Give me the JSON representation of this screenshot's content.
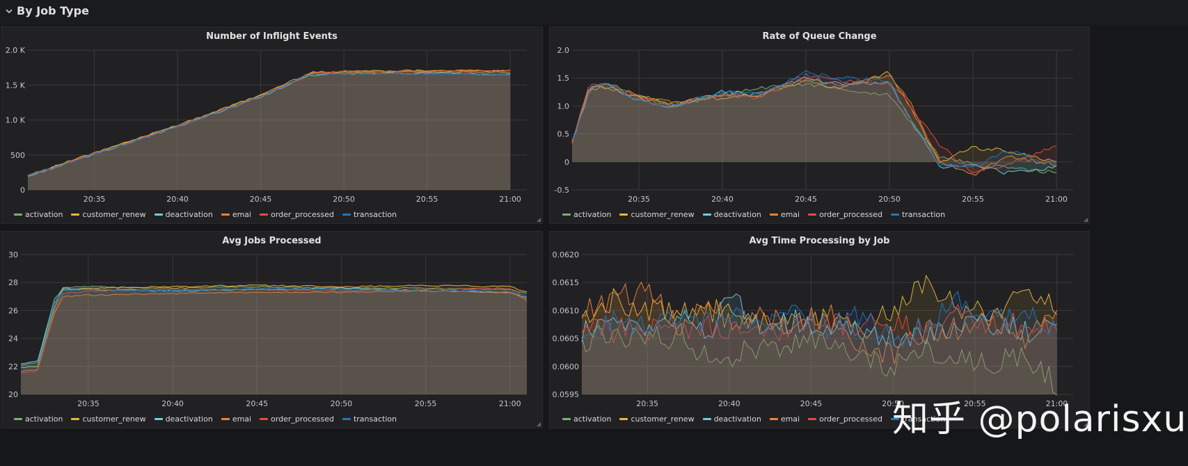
{
  "row": {
    "title": "By Job Type"
  },
  "series_colors": {
    "activation": "#7eb26d",
    "customer_renew": "#eab839",
    "deactivation": "#6ed0e0",
    "emai": "#ef843c",
    "order_processed": "#e24d42",
    "transaction": "#1f78c1"
  },
  "legend_labels": [
    "activation",
    "customer_renew",
    "deactivation",
    "emai",
    "order_processed",
    "transaction"
  ],
  "watermark": "知乎 @polarisxu",
  "chart_data": [
    {
      "type": "line",
      "title": "Number of Inflight Events",
      "x": [
        "20:31",
        "20:35",
        "20:40",
        "20:45",
        "20:48",
        "20:50",
        "20:55",
        "21:00"
      ],
      "x_ticks": [
        "20:35",
        "20:40",
        "20:45",
        "20:50",
        "20:55",
        "21:00"
      ],
      "y_ticks": [
        "0",
        "500",
        "1.0 K",
        "1.5 K",
        "2.0 K"
      ],
      "ylim": [
        0,
        2000
      ],
      "x_range": [
        "20:31",
        "21:01"
      ],
      "series": [
        {
          "name": "activation",
          "values": [
            200,
            520,
            930,
            1350,
            1650,
            1680,
            1690,
            1680
          ]
        },
        {
          "name": "customer_renew",
          "values": [
            210,
            530,
            920,
            1360,
            1680,
            1700,
            1710,
            1700
          ]
        },
        {
          "name": "deactivation",
          "values": [
            190,
            510,
            900,
            1330,
            1640,
            1660,
            1670,
            1650
          ]
        },
        {
          "name": "emai",
          "values": [
            205,
            525,
            915,
            1345,
            1670,
            1690,
            1700,
            1710
          ]
        },
        {
          "name": "order_processed",
          "values": [
            200,
            520,
            910,
            1340,
            1660,
            1700,
            1690,
            1700
          ]
        },
        {
          "name": "transaction",
          "values": [
            195,
            515,
            905,
            1335,
            1660,
            1670,
            1660,
            1640
          ]
        }
      ]
    },
    {
      "type": "line",
      "title": "Rate of Queue Change",
      "x": [
        "20:31",
        "20:32",
        "20:33",
        "20:35",
        "20:37",
        "20:40",
        "20:42",
        "20:45",
        "20:47",
        "20:50",
        "20:51",
        "20:53",
        "20:55",
        "20:57",
        "21:00"
      ],
      "x_ticks": [
        "20:35",
        "20:40",
        "20:45",
        "20:50",
        "20:55",
        "21:00"
      ],
      "y_ticks": [
        "-0.5",
        "0",
        "0.5",
        "1.0",
        "1.5",
        "2.0"
      ],
      "ylim": [
        -0.5,
        2.0
      ],
      "x_range": [
        "20:31",
        "21:01"
      ],
      "series": [
        {
          "name": "activation",
          "values": [
            0.35,
            1.3,
            1.4,
            1.2,
            1.0,
            1.2,
            1.3,
            1.4,
            1.3,
            1.2,
            0.8,
            0.1,
            -0.05,
            -0.1,
            -0.2
          ]
        },
        {
          "name": "customer_renew",
          "values": [
            0.35,
            1.25,
            1.35,
            1.15,
            1.05,
            1.15,
            1.2,
            1.45,
            1.3,
            1.6,
            1.1,
            0.0,
            0.25,
            0.2,
            0.0
          ]
        },
        {
          "name": "deactivation",
          "values": [
            0.35,
            1.3,
            1.4,
            1.1,
            1.0,
            1.25,
            1.2,
            1.5,
            1.4,
            1.4,
            0.9,
            -0.1,
            -0.05,
            -0.2,
            -0.1
          ]
        },
        {
          "name": "emai",
          "values": [
            0.35,
            1.3,
            1.35,
            1.2,
            1.05,
            1.2,
            1.15,
            1.5,
            1.35,
            1.55,
            1.2,
            0.0,
            -0.25,
            0.1,
            -0.05
          ]
        },
        {
          "name": "order_processed",
          "values": [
            0.35,
            1.35,
            1.4,
            1.15,
            1.0,
            1.2,
            1.15,
            1.55,
            1.45,
            1.4,
            1.1,
            0.3,
            -0.2,
            -0.05,
            0.3
          ]
        },
        {
          "name": "transaction",
          "values": [
            0.35,
            1.3,
            1.4,
            1.1,
            1.0,
            1.25,
            1.2,
            1.6,
            1.5,
            1.45,
            0.9,
            -0.05,
            -0.1,
            0.2,
            -0.05
          ]
        }
      ]
    },
    {
      "type": "line",
      "title": "Avg Jobs Processed",
      "x": [
        "20:31",
        "20:32",
        "20:33",
        "20:33.5",
        "20:35",
        "20:40",
        "20:45",
        "20:50",
        "20:55",
        "21:00",
        "21:01"
      ],
      "x_ticks": [
        "20:35",
        "20:40",
        "20:45",
        "20:50",
        "20:55",
        "21:00"
      ],
      "y_ticks": [
        "20",
        "22",
        "24",
        "26",
        "28",
        "30"
      ],
      "ylim": [
        20,
        30
      ],
      "x_range": [
        "20:31",
        "21:01"
      ],
      "series": [
        {
          "name": "activation",
          "values": [
            22.1,
            22.3,
            26.5,
            27.6,
            27.7,
            27.6,
            27.7,
            27.6,
            27.6,
            27.5,
            27.2
          ]
        },
        {
          "name": "customer_renew",
          "values": [
            21.9,
            22.0,
            26.2,
            27.5,
            27.6,
            27.7,
            27.8,
            27.7,
            27.8,
            27.7,
            27.3
          ]
        },
        {
          "name": "deactivation",
          "values": [
            22.2,
            22.4,
            26.8,
            27.6,
            27.5,
            27.4,
            27.5,
            27.6,
            27.4,
            27.3,
            26.9
          ]
        },
        {
          "name": "emai",
          "values": [
            21.6,
            21.8,
            25.8,
            27.0,
            27.1,
            27.2,
            27.3,
            27.3,
            27.4,
            27.3,
            26.8
          ]
        },
        {
          "name": "order_processed",
          "values": [
            21.5,
            21.7,
            25.9,
            27.2,
            27.4,
            27.5,
            27.5,
            27.4,
            27.5,
            27.6,
            26.7
          ]
        },
        {
          "name": "transaction",
          "values": [
            22.0,
            22.1,
            26.4,
            27.4,
            27.5,
            27.4,
            27.6,
            27.5,
            27.4,
            27.4,
            27.0
          ]
        }
      ]
    },
    {
      "type": "line",
      "title": "Avg Time Processing by Job",
      "x": [
        "20:31",
        "20:33",
        "20:35",
        "20:37",
        "20:39",
        "20:40",
        "20:42",
        "20:44",
        "20:46",
        "20:48",
        "20:50",
        "20:52",
        "20:54",
        "20:56",
        "20:58",
        "21:00"
      ],
      "x_ticks": [
        "20:35",
        "20:40",
        "20:45",
        "20:50",
        "20:55",
        "21:00"
      ],
      "y_ticks": [
        "0.0595",
        "0.0600",
        "0.0605",
        "0.0610",
        "0.0615",
        "0.0620"
      ],
      "ylim": [
        0.0595,
        0.062
      ],
      "x_range": [
        "20:31",
        "21:01"
      ],
      "series": [
        {
          "name": "activation",
          "values": [
            0.06045,
            0.0606,
            0.0605,
            0.06055,
            0.0601,
            0.0602,
            0.0603,
            0.06045,
            0.0604,
            0.0602,
            0.06,
            0.0603,
            0.0601,
            0.06005,
            0.0602,
            0.0597
          ]
        },
        {
          "name": "customer_renew",
          "values": [
            0.0609,
            0.0612,
            0.061,
            0.0609,
            0.061,
            0.0609,
            0.0608,
            0.06085,
            0.0608,
            0.0606,
            0.061,
            0.0615,
            0.0611,
            0.0609,
            0.0613,
            0.0611
          ]
        },
        {
          "name": "deactivation",
          "values": [
            0.0606,
            0.0608,
            0.0607,
            0.06085,
            0.0606,
            0.0613,
            0.0607,
            0.0608,
            0.0607,
            0.06065,
            0.0605,
            0.0606,
            0.0607,
            0.0608,
            0.0606,
            0.0607
          ]
        },
        {
          "name": "emai",
          "values": [
            0.061,
            0.0612,
            0.0614,
            0.0607,
            0.0611,
            0.0608,
            0.0609,
            0.0607,
            0.061,
            0.0603,
            0.0602,
            0.0606,
            0.0607,
            0.0609,
            0.0605,
            0.0611
          ]
        },
        {
          "name": "order_processed",
          "values": [
            0.0606,
            0.06065,
            0.0607,
            0.06065,
            0.0607,
            0.0606,
            0.0606,
            0.0607,
            0.0608,
            0.0607,
            0.0608,
            0.0606,
            0.0609,
            0.0607,
            0.0608,
            0.0607
          ]
        },
        {
          "name": "transaction",
          "values": [
            0.0607,
            0.0608,
            0.0607,
            0.0609,
            0.0608,
            0.061,
            0.0607,
            0.0609,
            0.0607,
            0.0609,
            0.0605,
            0.0607,
            0.0612,
            0.0608,
            0.061,
            0.0606
          ]
        }
      ]
    }
  ]
}
